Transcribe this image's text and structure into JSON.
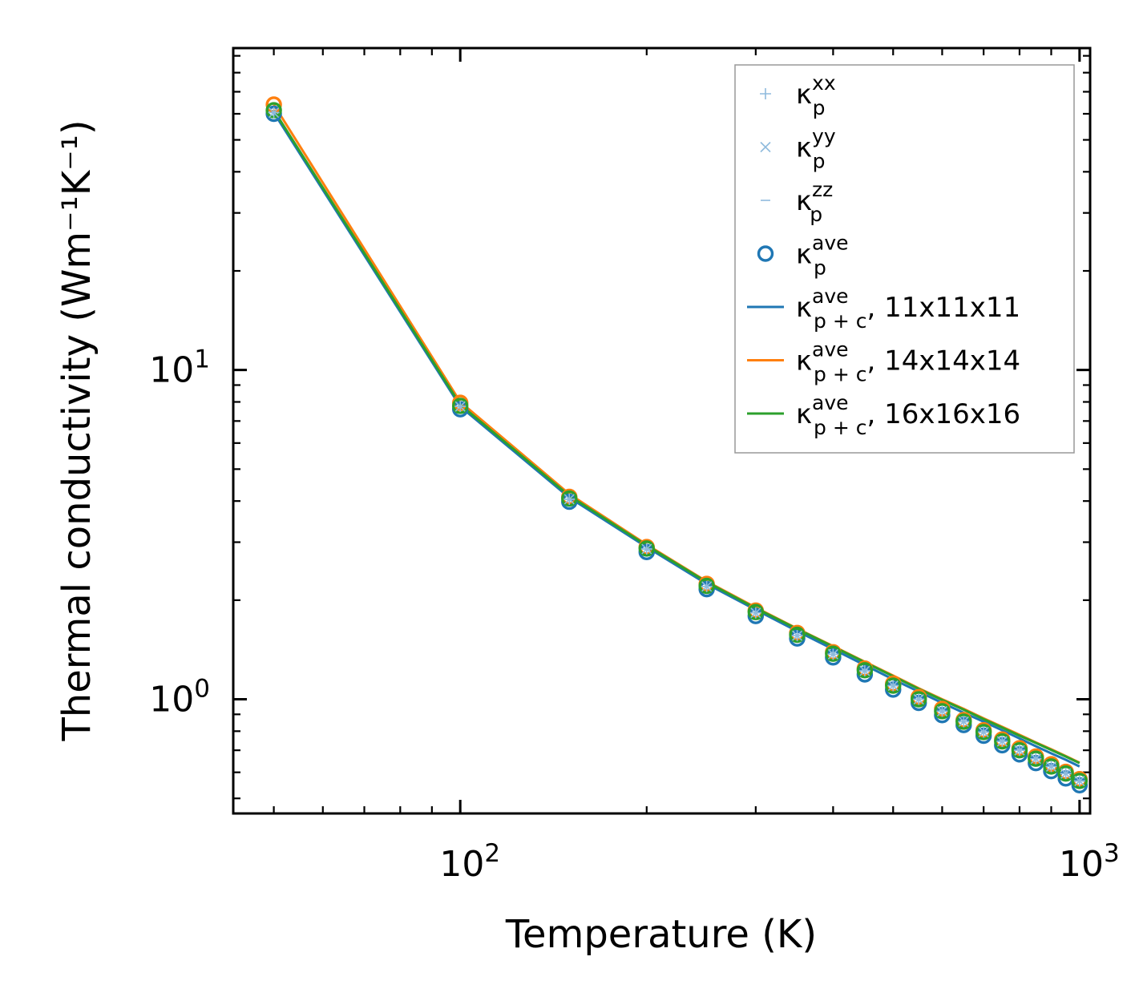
{
  "chart_data": {
    "type": "line",
    "title": "",
    "xlabel": "Temperature (K)",
    "ylabel": "Thermal conductivity (Wm⁻¹K⁻¹)",
    "xscale": "log",
    "yscale": "log",
    "xlim": [
      43,
      1040
    ],
    "ylim": [
      0.45,
      95
    ],
    "xticks": [
      {
        "value": 100,
        "base": "10",
        "exp": "2"
      },
      {
        "value": 1000,
        "base": "10",
        "exp": "3"
      }
    ],
    "yticks": [
      {
        "value": 1,
        "base": "10",
        "exp": "0"
      },
      {
        "value": 10,
        "base": "10",
        "exp": "1"
      }
    ],
    "x": [
      50,
      100,
      150,
      200,
      250,
      300,
      350,
      400,
      450,
      500,
      550,
      600,
      650,
      700,
      750,
      800,
      850,
      900,
      950,
      1000
    ],
    "marker_series": [
      {
        "name": "κ_p^xx",
        "marker": "plus",
        "color": "#8fbbdd",
        "values": [
          60.5,
          7.75,
          4.05,
          2.86,
          2.2,
          1.83,
          1.56,
          1.37,
          1.22,
          1.1,
          1.0,
          0.92,
          0.855,
          0.795,
          0.745,
          0.7,
          0.66,
          0.625,
          0.595,
          0.565
        ]
      },
      {
        "name": "κ_p^yy",
        "marker": "x",
        "color": "#8fbbdd",
        "values": [
          60.5,
          7.75,
          4.05,
          2.86,
          2.2,
          1.83,
          1.56,
          1.37,
          1.22,
          1.1,
          1.0,
          0.92,
          0.855,
          0.795,
          0.745,
          0.7,
          0.66,
          0.625,
          0.595,
          0.565
        ]
      },
      {
        "name": "κ_p^zz",
        "marker": "hline",
        "color": "#8fbbdd",
        "values": [
          60.5,
          7.75,
          4.05,
          2.86,
          2.2,
          1.83,
          1.56,
          1.37,
          1.22,
          1.1,
          1.0,
          0.92,
          0.855,
          0.795,
          0.745,
          0.7,
          0.66,
          0.625,
          0.595,
          0.565
        ]
      },
      {
        "name": "κ_p^ave, 11x11x11",
        "marker": "circle",
        "color": "#1f77b4",
        "values": [
          60.0,
          7.6,
          3.98,
          2.8,
          2.16,
          1.79,
          1.53,
          1.34,
          1.19,
          1.07,
          0.975,
          0.895,
          0.835,
          0.775,
          0.725,
          0.68,
          0.64,
          0.605,
          0.575,
          0.548
        ]
      },
      {
        "name": "κ_p^ave, 14x14x14",
        "marker": "circle",
        "color": "#ff7f0e",
        "values": [
          64.0,
          7.95,
          4.12,
          2.9,
          2.24,
          1.86,
          1.59,
          1.39,
          1.24,
          1.115,
          1.015,
          0.935,
          0.865,
          0.805,
          0.755,
          0.71,
          0.67,
          0.635,
          0.602,
          0.572
        ]
      },
      {
        "name": "κ_p^ave, 16x16x16",
        "marker": "circle",
        "color": "#2ca02c",
        "values": [
          61.5,
          7.78,
          4.07,
          2.87,
          2.21,
          1.84,
          1.57,
          1.375,
          1.225,
          1.1,
          1.0,
          0.92,
          0.855,
          0.795,
          0.745,
          0.7,
          0.66,
          0.625,
          0.595,
          0.565
        ]
      }
    ],
    "line_series": [
      {
        "name": "κ_p+c^ave, 11x11x11",
        "color": "#1f77b4",
        "values": [
          60.5,
          7.75,
          4.1,
          2.9,
          2.24,
          1.87,
          1.61,
          1.42,
          1.27,
          1.15,
          1.055,
          0.975,
          0.91,
          0.855,
          0.805,
          0.76,
          0.72,
          0.685,
          0.655,
          0.625
        ]
      },
      {
        "name": "κ_p+c^ave, 14x14x14",
        "color": "#ff7f0e",
        "values": [
          64.0,
          8.0,
          4.2,
          2.95,
          2.28,
          1.9,
          1.64,
          1.45,
          1.3,
          1.18,
          1.08,
          1.0,
          0.935,
          0.875,
          0.825,
          0.78,
          0.74,
          0.705,
          0.672,
          0.642
        ]
      },
      {
        "name": "κ_p+c^ave, 16x16x16",
        "color": "#2ca02c",
        "values": [
          61.5,
          7.85,
          4.15,
          2.93,
          2.27,
          1.89,
          1.635,
          1.445,
          1.295,
          1.175,
          1.075,
          0.995,
          0.93,
          0.87,
          0.82,
          0.775,
          0.737,
          0.702,
          0.67,
          0.64
        ]
      }
    ],
    "legend": {
      "position": "top-right",
      "entries": [
        {
          "symbol": "plus",
          "color": "#8fbbdd",
          "base": "κ",
          "sup": "xx",
          "sub": "p",
          "suffix": ""
        },
        {
          "symbol": "x",
          "color": "#8fbbdd",
          "base": "κ",
          "sup": "yy",
          "sub": "p",
          "suffix": ""
        },
        {
          "symbol": "hline",
          "color": "#8fbbdd",
          "base": "κ",
          "sup": "zz",
          "sub": "p",
          "suffix": ""
        },
        {
          "symbol": "circle",
          "color": "#1f77b4",
          "base": "κ",
          "sup": "ave",
          "sub": "p",
          "suffix": ""
        },
        {
          "symbol": "line",
          "color": "#1f77b4",
          "base": "κ",
          "sup": "ave",
          "sub": "p + c",
          "suffix": ", 11x11x11"
        },
        {
          "symbol": "line",
          "color": "#ff7f0e",
          "base": "κ",
          "sup": "ave",
          "sub": "p + c",
          "suffix": ", 14x14x14"
        },
        {
          "symbol": "line",
          "color": "#2ca02c",
          "base": "κ",
          "sup": "ave",
          "sub": "p + c",
          "suffix": ", 16x16x16"
        }
      ]
    }
  }
}
